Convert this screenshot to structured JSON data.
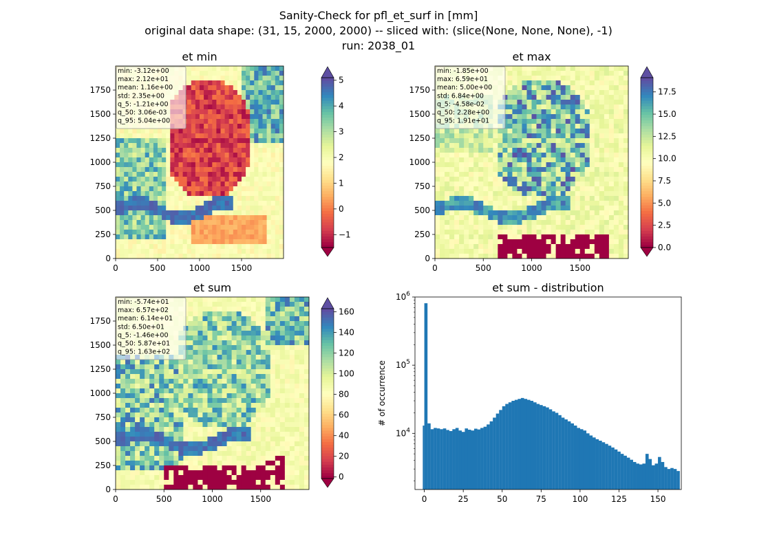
{
  "suptitle": {
    "line1": "Sanity-Check for pfl_et_surf in [mm]",
    "line2": "original data shape: (31, 15, 2000, 2000) -- sliced with: (slice(None, None, None), -1)",
    "line3": "run: 2038_01"
  },
  "panels": [
    {
      "title": "et min",
      "stats": [
        "min: -3.12e+00",
        "max: 2.12e+01",
        "mean: 1.16e+00",
        "std: 2.35e+00",
        "q_5: -1.21e+00",
        "q_50: 3.06e-03",
        "q_95: 5.04e+00"
      ],
      "xticks": [
        "0",
        "500",
        "1000",
        "1500"
      ],
      "yticks": [
        "0",
        "250",
        "500",
        "750",
        "1000",
        "1250",
        "1500",
        "1750"
      ],
      "colorbar": {
        "ticks": [
          -1,
          0,
          1,
          2,
          3,
          4,
          5
        ],
        "tick_labels": [
          "−1",
          "0",
          "1",
          "2",
          "3",
          "4",
          "5"
        ],
        "range": [
          -1.5,
          5.1
        ],
        "extend": "both"
      }
    },
    {
      "title": "et max",
      "stats": [
        "min: -1.85e+00",
        "max: 6.59e+01",
        "mean: 5.00e+00",
        "std: 6.84e+00",
        "q_5: -4.58e-02",
        "q_50: 2.28e+00",
        "q_95: 1.91e+01"
      ],
      "xticks": [
        "0",
        "500",
        "1000",
        "1500"
      ],
      "yticks": [
        "0",
        "250",
        "500",
        "750",
        "1000",
        "1250",
        "1500",
        "1750"
      ],
      "colorbar": {
        "ticks": [
          0,
          2.5,
          5,
          7.5,
          10,
          12.5,
          15,
          17.5
        ],
        "tick_labels": [
          "0.0",
          "2.5",
          "5.0",
          "7.5",
          "10.0",
          "12.5",
          "15.0",
          "17.5"
        ],
        "range": [
          0,
          19.1
        ],
        "extend": "both"
      }
    },
    {
      "title": "et sum",
      "stats": [
        "min: -5.74e+01",
        "max: 6.57e+02",
        "mean: 6.14e+01",
        "std: 6.50e+01",
        "q_5: -1.46e+00",
        "q_50: 5.87e+01",
        "q_95: 1.63e+02"
      ],
      "xticks": [
        "0",
        "500",
        "1000",
        "1500"
      ],
      "yticks": [
        "0",
        "250",
        "500",
        "750",
        "1000",
        "1250",
        "1500",
        "1750"
      ],
      "colorbar": {
        "ticks": [
          0,
          20,
          40,
          60,
          80,
          100,
          120,
          140,
          160
        ],
        "tick_labels": [
          "0",
          "20",
          "40",
          "60",
          "80",
          "100",
          "120",
          "140",
          "160"
        ],
        "range": [
          -1.5,
          163
        ],
        "extend": "both"
      }
    }
  ],
  "chart_data": [
    {
      "type": "heatmap",
      "title": "et min",
      "xlim": [
        0,
        2000
      ],
      "ylim": [
        0,
        2000
      ],
      "colormap": "Spectral"
    },
    {
      "type": "heatmap",
      "title": "et max",
      "xlim": [
        0,
        2000
      ],
      "ylim": [
        0,
        2000
      ],
      "colormap": "Spectral"
    },
    {
      "type": "heatmap",
      "title": "et sum",
      "xlim": [
        0,
        2000
      ],
      "ylim": [
        0,
        2000
      ],
      "colormap": "Spectral"
    },
    {
      "type": "bar",
      "title": "et sum - distribution",
      "ylabel": "# of occurrence",
      "yscale": "log",
      "xlim": [
        -6,
        165
      ],
      "ylim": [
        1500,
        1000000
      ],
      "xticks": [
        "0",
        "25",
        "50",
        "75",
        "100",
        "125",
        "150"
      ],
      "yticks": [
        "10^4",
        "10^5",
        "10^6"
      ],
      "bar_color": "#1f77b4",
      "x": [
        -1,
        0,
        2,
        4,
        6,
        8,
        10,
        12,
        14,
        16,
        18,
        20,
        22,
        24,
        26,
        28,
        30,
        32,
        34,
        36,
        38,
        40,
        42,
        44,
        46,
        48,
        50,
        52,
        54,
        56,
        58,
        60,
        62,
        64,
        66,
        68,
        70,
        72,
        74,
        76,
        78,
        80,
        82,
        84,
        86,
        88,
        90,
        92,
        94,
        96,
        98,
        100,
        102,
        104,
        106,
        108,
        110,
        112,
        114,
        116,
        118,
        120,
        122,
        124,
        126,
        128,
        130,
        132,
        134,
        136,
        138,
        140,
        142,
        144,
        146,
        148,
        150,
        152,
        154,
        156,
        158,
        160,
        162
      ],
      "values": [
        13000,
        810000,
        14000,
        11500,
        12000,
        11800,
        11500,
        11800,
        11200,
        10800,
        11500,
        12000,
        11000,
        10500,
        11800,
        11300,
        11000,
        11700,
        11400,
        12000,
        12500,
        13500,
        15000,
        17000,
        19500,
        22000,
        25000,
        27000,
        28500,
        30000,
        31000,
        32000,
        33000,
        32000,
        31000,
        30000,
        28500,
        27000,
        26000,
        25000,
        24000,
        22500,
        21000,
        20000,
        18500,
        17000,
        16000,
        15000,
        14000,
        13000,
        12000,
        11500,
        11000,
        10000,
        9300,
        8700,
        8200,
        7800,
        7400,
        7000,
        6600,
        6200,
        5800,
        5400,
        5000,
        4700,
        4400,
        4100,
        3800,
        3600,
        3500,
        3600,
        5000,
        4200,
        3400,
        3600,
        4500,
        3800,
        3200,
        3000,
        3100,
        3000,
        2800
      ]
    }
  ]
}
